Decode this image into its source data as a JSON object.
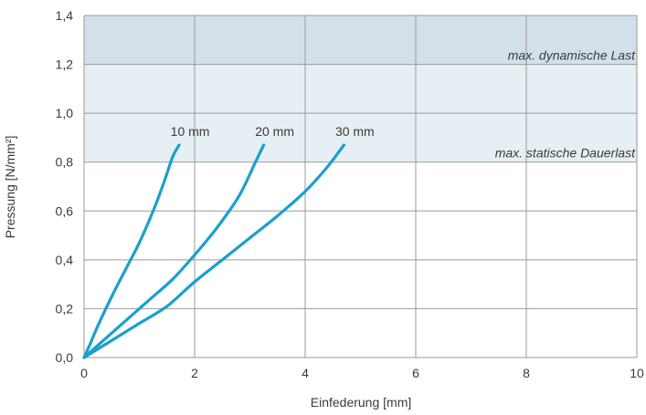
{
  "chart_data": {
    "type": "line",
    "title": "",
    "xlabel": "Einfederung [mm]",
    "ylabel": "Pressung [N/mm²]",
    "xlim": [
      0,
      10
    ],
    "ylim": [
      0,
      1.4
    ],
    "x_ticks": [
      "0",
      "2",
      "4",
      "6",
      "8",
      "10"
    ],
    "y_ticks": [
      "0,0",
      "0,2",
      "0,4",
      "0,6",
      "0,8",
      "1,0",
      "1,2",
      "1,4"
    ],
    "grid": true,
    "line_color": "#1b9fce",
    "zones": [
      {
        "label": "max. dynamische Last",
        "y_from": 1.2,
        "y_to": 1.4,
        "color": "#d3e0ea"
      },
      {
        "label": "max. statische Dauerlast",
        "y_from": 0.8,
        "y_to": 1.2,
        "color": "#e6eff4"
      }
    ],
    "series": [
      {
        "name": "10 mm",
        "x": [
          0,
          0.1,
          0.25,
          0.5,
          0.75,
          1.0,
          1.25,
          1.45,
          1.6,
          1.72
        ],
        "y": [
          0,
          0.05,
          0.13,
          0.25,
          0.36,
          0.47,
          0.6,
          0.72,
          0.82,
          0.87
        ]
      },
      {
        "name": "20 mm",
        "x": [
          0,
          0.4,
          0.8,
          1.2,
          1.6,
          2.0,
          2.4,
          2.8,
          3.1,
          3.25
        ],
        "y": [
          0,
          0.08,
          0.16,
          0.24,
          0.32,
          0.42,
          0.53,
          0.66,
          0.8,
          0.87
        ]
      },
      {
        "name": "30 mm",
        "x": [
          0,
          0.5,
          1.0,
          1.5,
          2.0,
          2.5,
          3.0,
          3.5,
          4.0,
          4.4,
          4.7
        ],
        "y": [
          0,
          0.07,
          0.14,
          0.21,
          0.31,
          0.4,
          0.49,
          0.58,
          0.68,
          0.78,
          0.87
        ]
      }
    ]
  }
}
